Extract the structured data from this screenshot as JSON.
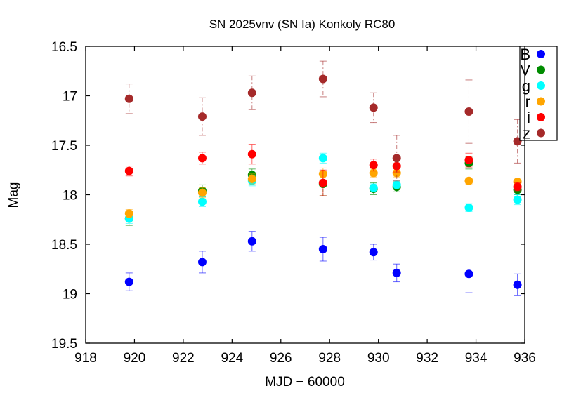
{
  "chart_data": {
    "type": "scatter",
    "title": "SN 2025vnv (SN Ia) Konkoly RC80",
    "xlabel": "MJD − 60000",
    "ylabel": "Mag",
    "xlim": [
      918,
      936
    ],
    "ylim": [
      16.5,
      19.5
    ],
    "y_inverted": true,
    "xticks": [
      "918",
      "920",
      "922",
      "924",
      "926",
      "928",
      "930",
      "932",
      "934",
      "936"
    ],
    "yticks": [
      "16.5",
      "17",
      "17.5",
      "18",
      "18.5",
      "19",
      "19.5"
    ],
    "grid": false,
    "legend_position": "top-right",
    "series": [
      {
        "name": "B",
        "color": "#0000ff",
        "x": [
          919.78,
          922.78,
          924.82,
          927.73,
          929.8,
          930.75,
          933.71,
          935.7
        ],
        "y": [
          18.88,
          18.68,
          18.47,
          18.55,
          18.58,
          18.79,
          18.8,
          18.91
        ],
        "err": [
          0.09,
          0.11,
          0.1,
          0.12,
          0.08,
          0.09,
          0.19,
          0.11
        ]
      },
      {
        "name": "V",
        "color": "#008c00",
        "x": [
          919.78,
          922.78,
          924.82,
          927.73,
          929.8,
          930.75,
          933.71,
          935.7
        ],
        "y": [
          18.24,
          17.96,
          17.8,
          17.89,
          17.94,
          17.92,
          17.68,
          17.95
        ],
        "err": [
          0.07,
          0.06,
          0.06,
          0.12,
          0.06,
          0.05,
          0.06,
          0.05
        ]
      },
      {
        "name": "g",
        "color": "#00ffff",
        "x": [
          919.78,
          922.78,
          924.82,
          927.73,
          929.8,
          930.75,
          933.71,
          935.7
        ],
        "y": [
          18.24,
          18.07,
          17.86,
          17.63,
          17.93,
          17.9,
          18.13,
          18.05
        ],
        "err": [
          0.05,
          0.05,
          0.05,
          0.05,
          0.04,
          0.04,
          0.04,
          0.05
        ]
      },
      {
        "name": "r",
        "color": "#ffa500",
        "x": [
          919.78,
          922.78,
          924.82,
          927.73,
          929.8,
          930.75,
          933.71,
          935.7
        ],
        "y": [
          18.19,
          17.98,
          17.84,
          17.79,
          17.78,
          17.78,
          17.86,
          17.87
        ],
        "err": [
          0.04,
          0.05,
          0.05,
          0.06,
          0.04,
          0.04,
          0.03,
          0.04
        ]
      },
      {
        "name": "i",
        "color": "#ff0000",
        "x": [
          919.78,
          922.78,
          924.82,
          927.73,
          929.8,
          930.75,
          933.71,
          935.7
        ],
        "y": [
          17.76,
          17.63,
          17.59,
          17.88,
          17.7,
          17.71,
          17.65,
          17.92
        ],
        "err": [
          0.05,
          0.06,
          0.1,
          0.13,
          0.06,
          0.06,
          0.07,
          0.04
        ]
      },
      {
        "name": "z",
        "color": "#a52a2a",
        "x": [
          919.78,
          922.78,
          924.82,
          927.73,
          929.8,
          930.75,
          933.71,
          935.7
        ],
        "y": [
          17.03,
          17.21,
          16.97,
          16.83,
          17.12,
          17.63,
          17.16,
          17.46
        ],
        "err": [
          0.15,
          0.19,
          0.17,
          0.18,
          0.15,
          0.23,
          0.32,
          0.22
        ]
      }
    ]
  }
}
